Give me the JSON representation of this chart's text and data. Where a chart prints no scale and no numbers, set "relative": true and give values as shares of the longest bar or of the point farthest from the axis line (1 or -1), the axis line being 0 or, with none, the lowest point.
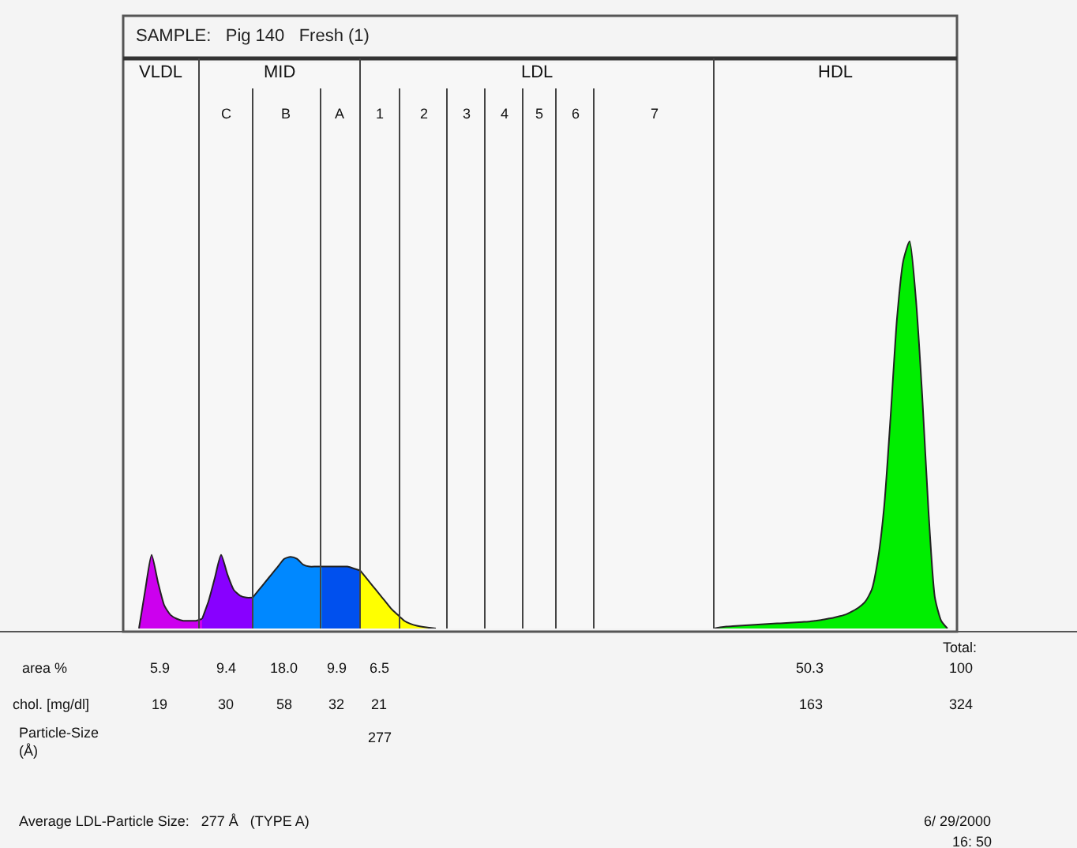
{
  "chart_data": {
    "type": "area",
    "relative": true,
    "title": "SAMPLE:   Pig 140   Fresh (1)",
    "categories": [
      null,
      null,
      null,
      null,
      null,
      null,
      null,
      null,
      null,
      null,
      null,
      null,
      null,
      null,
      null,
      null,
      null,
      null,
      null,
      null,
      null,
      null,
      null,
      null,
      null,
      null,
      null,
      null,
      null,
      null,
      null,
      null,
      null,
      null,
      null,
      null,
      null,
      null,
      null,
      null,
      null,
      null,
      null,
      null,
      null,
      null,
      null,
      null,
      null,
      null,
      null,
      null,
      null,
      null,
      null,
      null,
      null,
      null,
      null,
      null,
      null,
      null,
      null,
      null,
      null,
      null,
      null,
      null,
      null,
      null,
      null,
      null,
      null,
      null,
      null,
      null,
      null,
      null,
      null,
      null,
      null,
      null,
      null,
      null,
      null,
      null,
      null,
      null,
      null,
      null,
      null,
      null,
      null,
      null,
      null,
      null,
      null,
      null,
      null,
      null,
      null,
      null,
      null,
      null,
      null,
      null,
      null,
      null,
      null,
      null,
      null,
      null,
      null,
      null,
      null,
      null,
      null,
      null,
      null,
      null,
      null,
      null,
      null,
      null,
      null,
      null,
      null,
      null,
      null,
      null,
      null,
      null
    ],
    "series": [
      {
        "color": "#cc00ee",
        "values": [
          null,
          null,
          0,
          0.1,
          0.19,
          0.12,
          0.06,
          0.035,
          0.025,
          0.02,
          0.02,
          0.02,
          0.025,
          null,
          null,
          null,
          null,
          null,
          null,
          null,
          null,
          null,
          null,
          null,
          null,
          null,
          null,
          null,
          null,
          null,
          null,
          null,
          null,
          null,
          null,
          null,
          null,
          null,
          null,
          null,
          null,
          null,
          null,
          null,
          null,
          null,
          null,
          null,
          null,
          null,
          null,
          null,
          null,
          null,
          null,
          null,
          null,
          null,
          null,
          null,
          null,
          null,
          null,
          null,
          null,
          null,
          null,
          null,
          null,
          null,
          null,
          null,
          null,
          null,
          null,
          null,
          null,
          null,
          null,
          null,
          null,
          null,
          null,
          null,
          null,
          null,
          null,
          null,
          null,
          null,
          null,
          null,
          null,
          null,
          null,
          null,
          null,
          null,
          null,
          null,
          null,
          null,
          null,
          null,
          null,
          null,
          null,
          null,
          null,
          null,
          null,
          null,
          null,
          null,
          null,
          null,
          null,
          null,
          null,
          null,
          null,
          null,
          null,
          null,
          null,
          null,
          null,
          null,
          null,
          null,
          null,
          null
        ]
      },
      {
        "color": "#8800ff",
        "values": [
          null,
          null,
          null,
          null,
          null,
          null,
          null,
          null,
          null,
          null,
          null,
          null,
          0.025,
          0.07,
          0.13,
          0.19,
          0.14,
          0.1,
          0.085,
          0.08,
          0.08,
          null,
          null,
          null,
          null,
          null,
          null,
          null,
          null,
          null,
          null,
          null,
          null,
          null,
          null,
          null,
          null,
          null,
          null,
          null,
          null,
          null,
          null,
          null,
          null,
          null,
          null,
          null,
          null,
          null,
          null,
          null,
          null,
          null,
          null,
          null,
          null,
          null,
          null,
          null,
          null,
          null,
          null,
          null,
          null,
          null,
          null,
          null,
          null,
          null,
          null,
          null,
          null,
          null,
          null,
          null,
          null,
          null,
          null,
          null,
          null,
          null,
          null,
          null,
          null,
          null,
          null,
          null,
          null,
          null,
          null,
          null,
          null,
          null,
          null,
          null,
          null,
          null,
          null,
          null,
          null,
          null,
          null,
          null,
          null,
          null,
          null,
          null,
          null,
          null,
          null,
          null,
          null,
          null,
          null,
          null,
          null,
          null,
          null,
          null,
          null,
          null,
          null,
          null,
          null,
          null,
          null,
          null,
          null,
          null,
          null,
          null
        ]
      },
      {
        "color": "#0088ff",
        "values": [
          null,
          null,
          null,
          null,
          null,
          null,
          null,
          null,
          null,
          null,
          null,
          null,
          null,
          null,
          null,
          null,
          null,
          null,
          null,
          null,
          0.08,
          0.1,
          0.12,
          0.14,
          0.16,
          0.18,
          0.185,
          0.18,
          0.165,
          0.16,
          0.16,
          0.16,
          null,
          null,
          null,
          null,
          null,
          null,
          null,
          null,
          null,
          null,
          null,
          null,
          null,
          null,
          null,
          null,
          null,
          null,
          null,
          null,
          null,
          null,
          null,
          null,
          null,
          null,
          null,
          null,
          null,
          null,
          null,
          null,
          null,
          null,
          null,
          null,
          null,
          null,
          null,
          null,
          null,
          null,
          null,
          null,
          null,
          null,
          null,
          null,
          null,
          null,
          null,
          null,
          null,
          null,
          null,
          null,
          null,
          null,
          null,
          null,
          null,
          null,
          null,
          null,
          null,
          null,
          null,
          null,
          null,
          null,
          null,
          null,
          null,
          null,
          null,
          null,
          null,
          null,
          null,
          null,
          null,
          null,
          null,
          null,
          null,
          null,
          null,
          null,
          null,
          null,
          null,
          null,
          null,
          null,
          null,
          null,
          null,
          null,
          null,
          null
        ]
      },
      {
        "color": "#0050ee",
        "values": [
          null,
          null,
          null,
          null,
          null,
          null,
          null,
          null,
          null,
          null,
          null,
          null,
          null,
          null,
          null,
          null,
          null,
          null,
          null,
          null,
          null,
          null,
          null,
          null,
          null,
          null,
          null,
          null,
          null,
          null,
          null,
          0.16,
          0.16,
          0.16,
          0.16,
          0.16,
          0.155,
          0.15,
          null,
          null,
          null,
          null,
          null,
          null,
          null,
          null,
          null,
          null,
          null,
          null,
          null,
          null,
          null,
          null,
          null,
          null,
          null,
          null,
          null,
          null,
          null,
          null,
          null,
          null,
          null,
          null,
          null,
          null,
          null,
          null,
          null,
          null,
          null,
          null,
          null,
          null,
          null,
          null,
          null,
          null,
          null,
          null,
          null,
          null,
          null,
          null,
          null,
          null,
          null,
          null,
          null,
          null,
          null,
          null,
          null,
          null,
          null,
          null,
          null,
          null,
          null,
          null,
          null,
          null,
          null,
          null,
          null,
          null,
          null,
          null,
          null,
          null,
          null,
          null,
          null,
          null,
          null,
          null,
          null,
          null,
          null,
          null,
          null,
          null,
          null,
          null,
          null,
          null,
          null,
          null,
          null,
          null
        ]
      },
      {
        "color": "#ffff00",
        "values": [
          null,
          null,
          null,
          null,
          null,
          null,
          null,
          null,
          null,
          null,
          null,
          null,
          null,
          null,
          null,
          null,
          null,
          null,
          null,
          null,
          null,
          null,
          null,
          null,
          null,
          null,
          null,
          null,
          null,
          null,
          null,
          null,
          null,
          null,
          null,
          null,
          null,
          0.15,
          0.13,
          0.11,
          0.09,
          0.07,
          0.05,
          0.035,
          0.02,
          0.012,
          0.007,
          0.004,
          0.002,
          0,
          null,
          null,
          null,
          null,
          null,
          null,
          null,
          null,
          null,
          null,
          null,
          null,
          null,
          null,
          null,
          null,
          null,
          null,
          null,
          null,
          null,
          null,
          null,
          null,
          null,
          null,
          null,
          null,
          null,
          null,
          null,
          null,
          null,
          null,
          null,
          null,
          null,
          null,
          null,
          null,
          null,
          null,
          null,
          null,
          null,
          null,
          null,
          null,
          null,
          null,
          null,
          null,
          null,
          null,
          null,
          null,
          null,
          null,
          null,
          null,
          null,
          null,
          null,
          null,
          null,
          null,
          null,
          null,
          null,
          null,
          null,
          null,
          null,
          null,
          null,
          null,
          null,
          null,
          null,
          null,
          null,
          null
        ]
      },
      {
        "color": "#00ee00",
        "values": [
          null,
          null,
          null,
          null,
          null,
          null,
          null,
          null,
          null,
          null,
          null,
          null,
          null,
          null,
          null,
          null,
          null,
          null,
          null,
          null,
          null,
          null,
          null,
          null,
          null,
          null,
          null,
          null,
          null,
          null,
          null,
          null,
          null,
          null,
          null,
          null,
          null,
          null,
          null,
          null,
          null,
          null,
          null,
          null,
          null,
          null,
          null,
          null,
          null,
          null,
          null,
          null,
          null,
          null,
          null,
          null,
          null,
          null,
          null,
          null,
          null,
          null,
          null,
          null,
          null,
          null,
          null,
          null,
          null,
          null,
          null,
          null,
          null,
          null,
          null,
          null,
          null,
          null,
          null,
          null,
          null,
          null,
          null,
          null,
          null,
          null,
          null,
          null,
          null,
          null,
          null,
          null,
          null,
          0,
          0.003,
          0.005,
          0.006,
          0.007,
          0.008,
          0.009,
          0.01,
          0.011,
          0.012,
          0.013,
          0.014,
          0.015,
          0.016,
          0.017,
          0.018,
          0.02,
          0.022,
          0.025,
          0.028,
          0.032,
          0.037,
          0.045,
          0.055,
          0.07,
          0.1,
          0.18,
          0.32,
          0.55,
          0.8,
          0.95,
          1,
          0.85,
          0.6,
          0.3,
          0.08,
          0.02,
          0,
          null
        ]
      }
    ],
    "annotations": [
      "VLDL",
      "MID",
      "LDL",
      "HDL",
      "C",
      "B",
      "A",
      "1",
      "2",
      "3",
      "4",
      "5",
      "6",
      "7",
      "Total:",
      "area %",
      "5.9",
      "9.4",
      "18.0",
      "9.9",
      "6.5",
      "50.3",
      "100",
      "chol. [mg/dl]",
      "19",
      "30",
      "58",
      "32",
      "21",
      "163",
      "324",
      "Particle-Size (Å)",
      "277",
      "Average LDL-Particle Size:   277 Å   (TYPE A)",
      "6/ 29/2000",
      "16: 50"
    ],
    "grid": false
  }
}
